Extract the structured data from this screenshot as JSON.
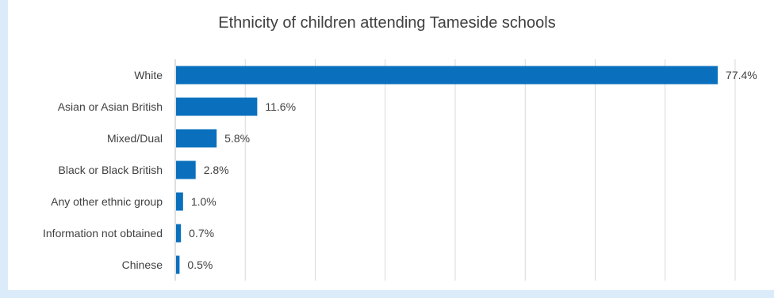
{
  "chart_data": {
    "type": "bar",
    "orientation": "horizontal",
    "title": "Ethnicity of children attending Tameside schools",
    "categories": [
      "White",
      "Asian or Asian British",
      "Mixed/Dual",
      "Black or Black British",
      "Any other ethnic group",
      "Information not obtained",
      "Chinese"
    ],
    "values": [
      77.4,
      11.6,
      5.8,
      2.8,
      1.0,
      0.7,
      0.5
    ],
    "data_labels": [
      "77.4%",
      "11.6%",
      "5.8%",
      "2.8%",
      "1.0%",
      "0.7%",
      "0.5%"
    ],
    "unit": "%",
    "xlim": [
      0,
      80
    ],
    "gridlines": true,
    "legend": "none",
    "bar_color": "#0a70bd"
  }
}
